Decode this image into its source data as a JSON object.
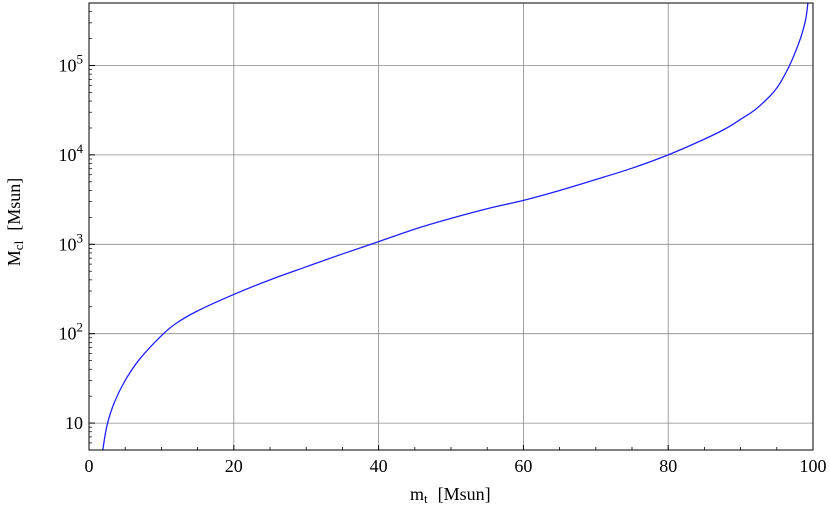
{
  "chart_data": {
    "type": "line",
    "xlabel": {
      "main": "m",
      "sub": "t",
      "unit": "[Msun]"
    },
    "ylabel": {
      "main": "M",
      "sub": "cl",
      "unit": "[Msun]"
    },
    "xlim": [
      0,
      100
    ],
    "ylim": [
      5,
      500000
    ],
    "y_scale": "log",
    "grid": true,
    "x_ticks": [
      {
        "value": 0,
        "label": "0"
      },
      {
        "value": 20,
        "label": "20"
      },
      {
        "value": 40,
        "label": "40"
      },
      {
        "value": 60,
        "label": "60"
      },
      {
        "value": 80,
        "label": "80"
      },
      {
        "value": 100,
        "label": "100"
      }
    ],
    "y_ticks": [
      {
        "value": 10,
        "base": "10",
        "exp": ""
      },
      {
        "value": 100,
        "base": "10",
        "exp": "2"
      },
      {
        "value": 1000,
        "base": "10",
        "exp": "3"
      },
      {
        "value": 10000,
        "base": "10",
        "exp": "4"
      },
      {
        "value": 100000,
        "base": "10",
        "exp": "5"
      }
    ],
    "series": [
      {
        "color": "#1f1fff",
        "x": [
          1.9,
          2.5,
          3.5,
          5,
          7,
          10,
          12,
          15,
          20,
          25,
          30,
          35,
          40,
          45,
          50,
          55,
          60,
          65,
          70,
          75,
          80,
          85,
          88,
          90,
          92,
          94,
          95,
          96,
          97,
          98,
          98.5,
          99,
          99.3
        ],
        "y": [
          5,
          9.5,
          17,
          30,
          52,
          95,
          130,
          180,
          275,
          400,
          560,
          780,
          1070,
          1480,
          1950,
          2500,
          3100,
          4000,
          5300,
          7100,
          10000,
          15000,
          19800,
          25000,
          32000,
          45000,
          56000,
          76000,
          110000,
          175000,
          230000,
          330000,
          500000
        ]
      }
    ]
  }
}
